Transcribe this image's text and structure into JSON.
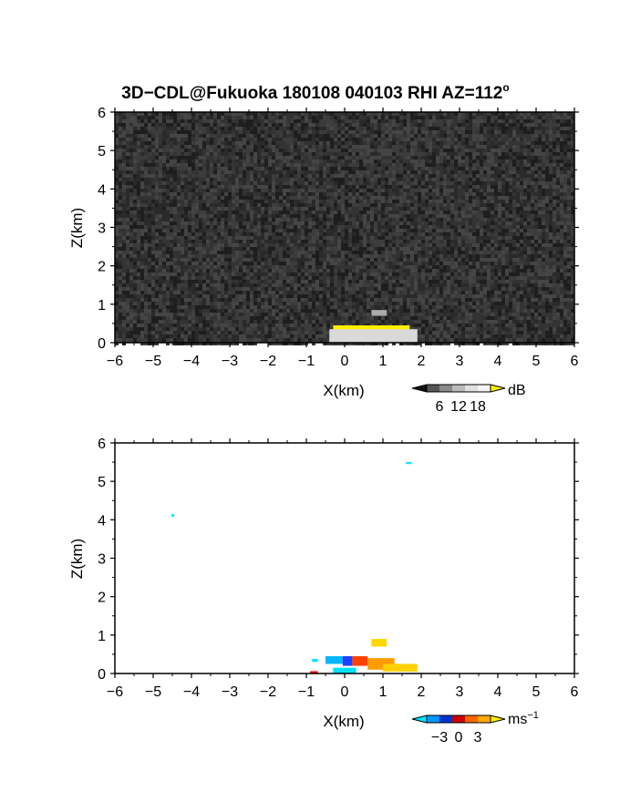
{
  "title": "3D−CDL@Fukuoka 180108 040103 RHI AZ=112",
  "title_sup": "o",
  "chart_data": [
    {
      "type": "heatmap",
      "quantity": "reflectivity",
      "xlabel": "X(km)",
      "ylabel": "Z(km)",
      "xlim": [
        -6,
        6
      ],
      "ylim": [
        0,
        6
      ],
      "xticks": [
        "−6",
        "−5",
        "−4",
        "−3",
        "−2",
        "−1",
        "0",
        "1",
        "2",
        "3",
        "4",
        "5",
        "6"
      ],
      "yticks": [
        "0",
        "1",
        "2",
        "3",
        "4",
        "5",
        "6"
      ],
      "background_colors": [
        "#1e1e1e",
        "#2a2a2a",
        "#333333",
        "#3c3c3c",
        "#454545"
      ],
      "colorbar": {
        "unit": "dB",
        "ticks": [
          "6",
          "12",
          "18"
        ],
        "colors": [
          "#111111",
          "#555555",
          "#8a8a8a",
          "#bbbbbb",
          "#e0e0e0",
          "#f5f5f5",
          "#ffee00"
        ]
      },
      "features": [
        {
          "x": [
            -0.3,
            1.7
          ],
          "z": [
            0.05,
            0.45
          ],
          "color": "#ffee00"
        },
        {
          "x": [
            -0.4,
            1.9
          ],
          "z": [
            0.0,
            0.35
          ],
          "color": "#d9d9d9"
        },
        {
          "x": [
            0.7,
            1.1
          ],
          "z": [
            0.7,
            0.85
          ],
          "color": "#aaaaaa"
        }
      ]
    },
    {
      "type": "heatmap",
      "quantity": "velocity",
      "xlabel": "X(km)",
      "ylabel": "Z(km)",
      "xlim": [
        -6,
        6
      ],
      "ylim": [
        0,
        6
      ],
      "xticks": [
        "−6",
        "−5",
        "−4",
        "−3",
        "−2",
        "−1",
        "0",
        "1",
        "2",
        "3",
        "4",
        "5",
        "6"
      ],
      "yticks": [
        "0",
        "1",
        "2",
        "3",
        "4",
        "5",
        "6"
      ],
      "colorbar": {
        "unit": "ms",
        "unit_sup": "−1",
        "ticks": [
          "−3",
          "0",
          "3"
        ],
        "colors": [
          "#00e5ff",
          "#0099ff",
          "#0033cc",
          "#cc0000",
          "#ff6600",
          "#ffaa00",
          "#ffee00"
        ]
      },
      "features": [
        {
          "x": [
            -0.5,
            -0.05
          ],
          "z": [
            0.25,
            0.45
          ],
          "color": "#00b7ff"
        },
        {
          "x": [
            -0.05,
            0.2
          ],
          "z": [
            0.2,
            0.45
          ],
          "color": "#1f3fff"
        },
        {
          "x": [
            0.2,
            0.6
          ],
          "z": [
            0.2,
            0.45
          ],
          "color": "#ff4000"
        },
        {
          "x": [
            0.6,
            1.3
          ],
          "z": [
            0.1,
            0.4
          ],
          "color": "#ff9a00"
        },
        {
          "x": [
            1.0,
            1.9
          ],
          "z": [
            0.05,
            0.25
          ],
          "color": "#ffd000"
        },
        {
          "x": [
            -0.3,
            0.3
          ],
          "z": [
            0.0,
            0.15
          ],
          "color": "#00e0ff"
        },
        {
          "x": [
            0.7,
            1.1
          ],
          "z": [
            0.7,
            0.9
          ],
          "color": "#ffd800"
        },
        {
          "x": [
            -0.85,
            -0.7
          ],
          "z": [
            0.3,
            0.38
          ],
          "color": "#00e5ff"
        },
        {
          "x": [
            -0.9,
            -0.7
          ],
          "z": [
            0.0,
            0.06
          ],
          "color": "#ff0000"
        },
        {
          "x": [
            1.6,
            1.75
          ],
          "z": [
            5.45,
            5.5
          ],
          "color": "#00e5ff"
        },
        {
          "x": [
            -4.52,
            -4.45
          ],
          "z": [
            4.08,
            4.15
          ],
          "color": "#00e5ff"
        }
      ]
    }
  ]
}
